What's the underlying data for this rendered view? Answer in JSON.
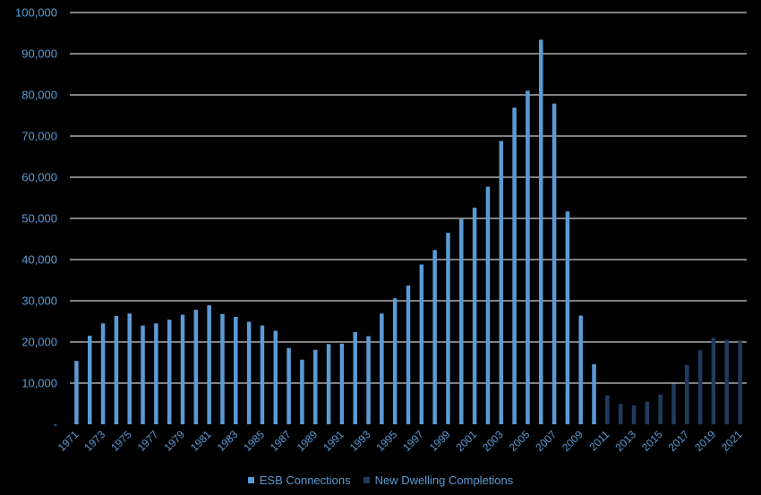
{
  "chart_data": {
    "type": "bar",
    "title": "",
    "xlabel": "",
    "ylabel": "",
    "ylim": [
      0,
      100000
    ],
    "yticks": [
      0,
      10000,
      20000,
      30000,
      40000,
      50000,
      60000,
      70000,
      80000,
      90000,
      100000
    ],
    "ytick_labels": [
      "-",
      "10,000",
      "20,000",
      "30,000",
      "40,000",
      "50,000",
      "60,000",
      "70,000",
      "80,000",
      "90,000",
      "100,000"
    ],
    "grid": true,
    "legend_position": "bottom",
    "categories": [
      "1971",
      "1972",
      "1973",
      "1974",
      "1975",
      "1976",
      "1977",
      "1978",
      "1979",
      "1980",
      "1981",
      "1982",
      "1983",
      "1984",
      "1985",
      "1986",
      "1987",
      "1988",
      "1989",
      "1990",
      "1991",
      "1992",
      "1993",
      "1994",
      "1995",
      "1996",
      "1997",
      "1998",
      "1999",
      "2000",
      "2001",
      "2002",
      "2003",
      "2004",
      "2005",
      "2006",
      "2007",
      "2008",
      "2009",
      "2010",
      "2011",
      "2012",
      "2013",
      "2014",
      "2015",
      "2016",
      "2017",
      "2018",
      "2019",
      "2020",
      "2021"
    ],
    "xtick_labels": [
      "1971",
      "1973",
      "1975",
      "1977",
      "1979",
      "1981",
      "1983",
      "1985",
      "1987",
      "1989",
      "1991",
      "1993",
      "1995",
      "1997",
      "1999",
      "2001",
      "2003",
      "2005",
      "2007",
      "2009",
      "2011",
      "2013",
      "2015",
      "2017",
      "2019",
      "2021"
    ],
    "series": [
      {
        "name": "ESB Connections",
        "color": "#5b9bd5",
        "values": [
          15400,
          21500,
          24500,
          26300,
          26900,
          24000,
          24500,
          25400,
          26600,
          27800,
          28900,
          26800,
          26100,
          24900,
          24000,
          22700,
          18500,
          15700,
          18100,
          19500,
          19600,
          22400,
          21400,
          26900,
          30600,
          33700,
          38800,
          42300,
          46500,
          49800,
          52600,
          57700,
          68800,
          76900,
          81000,
          93400,
          77900,
          51700,
          26400,
          14600,
          null,
          null,
          null,
          null,
          null,
          null,
          null,
          null,
          null,
          null,
          null
        ]
      },
      {
        "name": "New Dwelling Completions",
        "color": "#1f3b5e",
        "values": [
          null,
          null,
          null,
          null,
          null,
          null,
          null,
          null,
          null,
          null,
          null,
          null,
          null,
          null,
          null,
          null,
          null,
          null,
          null,
          null,
          null,
          null,
          null,
          null,
          null,
          null,
          null,
          null,
          null,
          null,
          null,
          null,
          null,
          null,
          null,
          null,
          null,
          null,
          null,
          null,
          7000,
          4900,
          4600,
          5500,
          7200,
          9900,
          14400,
          18000,
          21000,
          20500,
          20400
        ]
      }
    ]
  }
}
